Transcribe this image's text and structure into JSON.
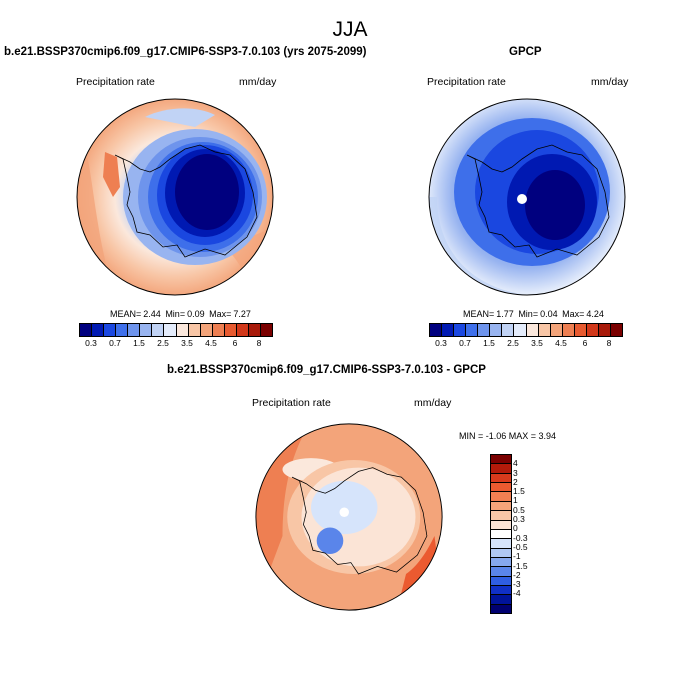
{
  "title": "JJA",
  "panels": [
    {
      "title": "b.e21.BSSP370cmip6.f09_g17.CMIP6-SSP3-7.0.103 (yrs 2075-2099)",
      "variable": "Precipitation rate",
      "units": "mm/day",
      "stats": {
        "mean_label": "MEAN=",
        "mean": "2.44",
        "min_label": "Min=",
        "min": "0.09",
        "max_label": "Max=",
        "max": "7.27"
      }
    },
    {
      "title": "GPCP",
      "variable": "Precipitation rate",
      "units": "mm/day",
      "stats": {
        "mean_label": "MEAN=",
        "mean": "1.77",
        "min_label": "Min=",
        "min": "0.04",
        "max_label": "Max=",
        "max": "4.24"
      }
    },
    {
      "title": "b.e21.BSSP370cmip6.f09_g17.CMIP6-SSP3-7.0.103 - GPCP",
      "variable": "Precipitation rate",
      "units": "mm/day",
      "stats_text": "MIN = -1.06 MAX = 3.94"
    }
  ],
  "abs_colorbar": {
    "colors": [
      "#00007f",
      "#0019b2",
      "#1a47e0",
      "#3e6fea",
      "#6e94ec",
      "#98b4f0",
      "#c1d3f5",
      "#e4ecfb",
      "#fbe8dc",
      "#f8c6a6",
      "#f3a47a",
      "#ee7f52",
      "#e75a30",
      "#d2381a",
      "#a81a0a",
      "#7a0000"
    ],
    "tick_labels": [
      "0.3",
      "0.7",
      "1.5",
      "2.5",
      "3.5",
      "4.5",
      "6",
      "8"
    ]
  },
  "diff_colorbar": {
    "colors": [
      "#7a0000",
      "#b21a0a",
      "#d83a1c",
      "#eb5a30",
      "#f27f52",
      "#f6a47a",
      "#f8c6a6",
      "#fbe4d6",
      "#ffffff",
      "#d6e4fb",
      "#b0c8f3",
      "#86a8ee",
      "#5a85ea",
      "#2f5ee2",
      "#1030c6",
      "#00139a",
      "#000070"
    ],
    "tick_labels": [
      "4",
      "3",
      "2",
      "1.5",
      "1",
      "0.5",
      "0.3",
      "0",
      "-0.3",
      "-0.5",
      "-1",
      "-1.5",
      "-2",
      "-3",
      "-4"
    ]
  }
}
